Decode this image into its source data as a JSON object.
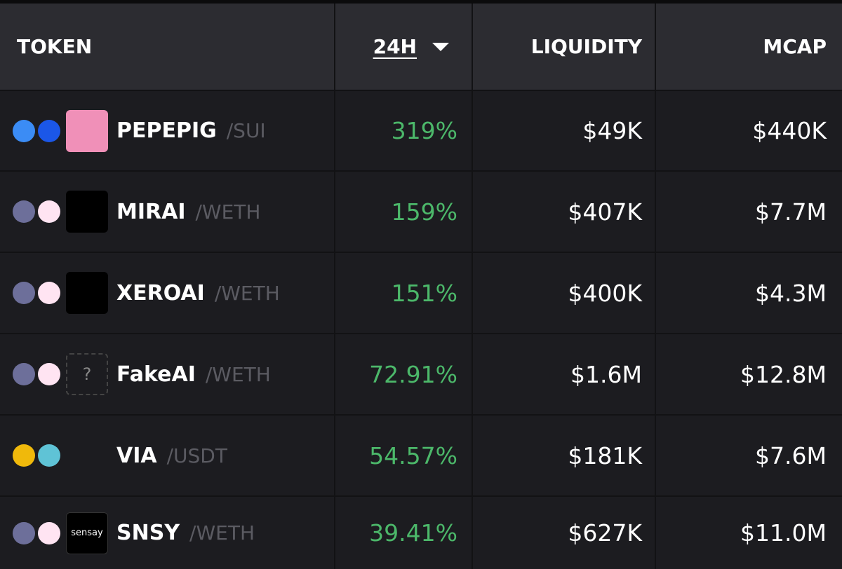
{
  "header": {
    "columns": [
      "TOKEN",
      "24H",
      "LIQUIDITY",
      "MCAP"
    ]
  },
  "table": {
    "rows": [
      {
        "token": "PEPEPIG",
        "pair": "/SUI",
        "change": "319%",
        "liquidity": "$49K",
        "mcap": "$440K"
      },
      {
        "token": "MIRAI",
        "pair": "/WETH",
        "change": "159%",
        "liquidity": "$407K",
        "mcap": "$7.7M"
      },
      {
        "token": "XEROAI",
        "pair": "/WETH",
        "change": "151%",
        "liquidity": "$400K",
        "mcap": "$4.3M"
      },
      {
        "token": "FakeAI",
        "pair": "/WETH",
        "change": "72.91%",
        "liquidity": "$1.6M",
        "mcap": "$12.8M",
        "logo_text": "?"
      },
      {
        "token": "VIA",
        "pair": "/USDT",
        "change": "54.57%",
        "liquidity": "$181K",
        "mcap": "$7.6M"
      },
      {
        "token": "SNSY",
        "pair": "/WETH",
        "change": "39.41%",
        "liquidity": "$627K",
        "mcap": "$11.0M",
        "logo_text": "sensay"
      }
    ]
  }
}
